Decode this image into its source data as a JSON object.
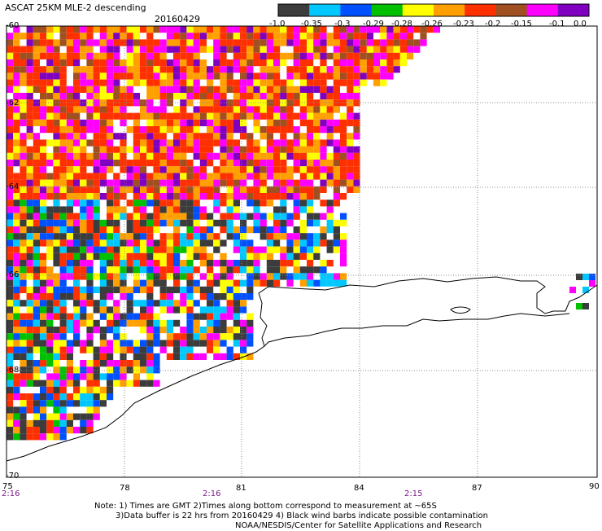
{
  "header": {
    "title": "ASCAT 25KM MLE-2 descending",
    "date": "20160429"
  },
  "colorbar": {
    "colors": [
      "#3c3c3c",
      "#00c8ff",
      "#0050ff",
      "#00c000",
      "#ffff00",
      "#ffa000",
      "#ff3000",
      "#a05020",
      "#ff00ff",
      "#8000c0"
    ],
    "labels": [
      "-1.0",
      "-0.35",
      "-0.3",
      "-0.29",
      "-0.28",
      "-0.26",
      "-0.23",
      "-0.2",
      "-0.15",
      "-0.1",
      "0.0"
    ]
  },
  "axes": {
    "x_ticks": [
      "75",
      "78",
      "81",
      "84",
      "87",
      "90"
    ],
    "y_ticks": [
      "-60",
      "-62",
      "-64",
      "-66",
      "-68",
      "-70"
    ],
    "times": [
      "2:16",
      "2:16",
      "2:15"
    ]
  },
  "notes": {
    "line1": "Note: 1) Times are GMT 2)Times along bottom correspond to measurement at ~65S",
    "line2": "3)Data buffer is 22 hrs from 20160429 4) Black wind barbs indicate possible contamination",
    "line3": "NOAA/NESDIS/Center for Satellite Applications and Research"
  }
}
